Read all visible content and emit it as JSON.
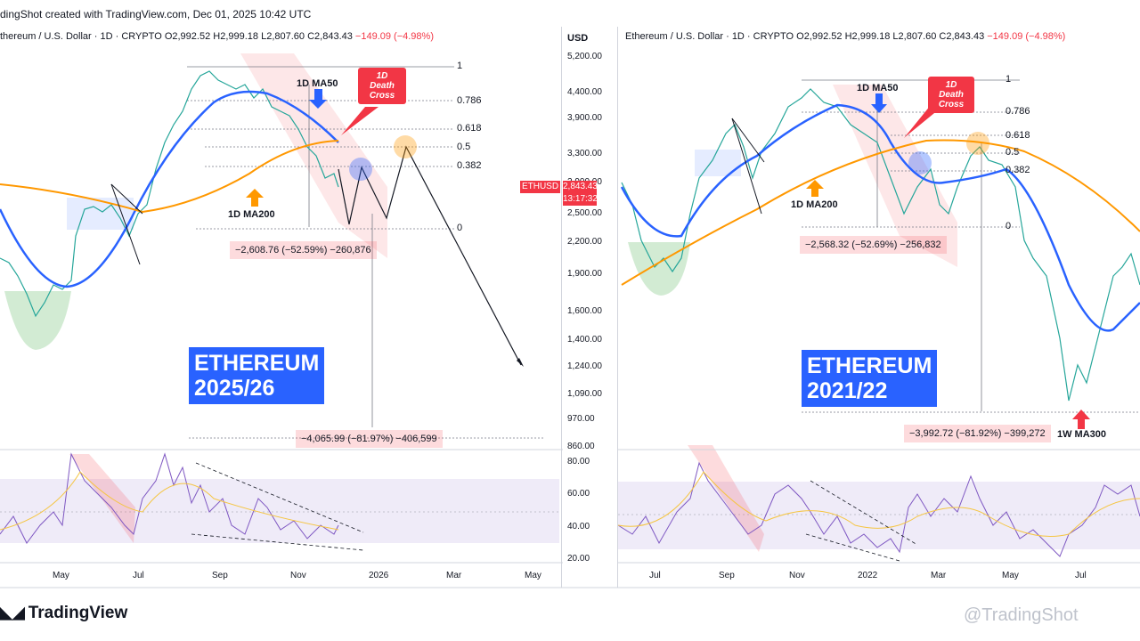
{
  "header": {
    "created_text": "dingShot created with TradingView.com, Dec 01, 2025 10:42 UTC"
  },
  "left": {
    "ohlc_prefix": "thereum / U.S. Dollar · 1D · CRYPTO",
    "o": "O2,992.52",
    "h": "H2,999.18",
    "l": "L2,807.60",
    "c": "C2,843.43",
    "chg": "−149.09 (−4.98%)",
    "title_line1": "ETHEREUM",
    "title_line2": "2025/26",
    "ma50": "1D MA50",
    "ma200": "1D MA200",
    "death_cross": [
      "1D",
      "Death",
      "Cross"
    ],
    "measure1": "−2,608.76 (−52.59%) −260,876",
    "measure2": "−4,065.99 (−81.97%) −406,599",
    "fib": [
      "1",
      "0.786",
      "0.618",
      "0.5",
      "0.382",
      "0"
    ]
  },
  "right": {
    "ohlc_prefix": "Ethereum / U.S. Dollar · 1D · CRYPTO",
    "o": "O2,992.52",
    "h": "H2,999.18",
    "l": "L2,807.60",
    "c": "C2,843.43",
    "chg": "−149.09 (−4.98%)",
    "title_line1": "ETHEREUM",
    "title_line2": "2021/22",
    "ma50": "1D MA50",
    "ma200": "1D MA200",
    "ma300": "1W MA300",
    "death_cross": [
      "1D",
      "Death",
      "Cross"
    ],
    "measure1": "−2,568.32 (−52.69%) −256,832",
    "measure2": "−3,992.72 (−81.92%) −399,272",
    "fib": [
      "1",
      "0.786",
      "0.618",
      "0.5",
      "0.382",
      "0"
    ]
  },
  "price_axis": {
    "currency": "USD",
    "ticks": [
      "5,200.00",
      "4,400.00",
      "3,900.00",
      "3,300.00",
      "2,900.00",
      "2,500.00",
      "2,200.00",
      "1,900.00",
      "1,600.00",
      "1,400.00",
      "1,240.00",
      "1,090.00",
      "970.00",
      "860.00"
    ],
    "rsi_ticks": [
      "80.00",
      "60.00",
      "40.00",
      "20.00"
    ],
    "tag_name": "ETHUSD",
    "tag_price": "2,843.43",
    "tag_time": "13:17:32"
  },
  "left_xaxis": [
    "May",
    "Jul",
    "Sep",
    "Nov",
    "2026",
    "Mar",
    "May"
  ],
  "right_xaxis": [
    "Jul",
    "Sep",
    "Nov",
    "2022",
    "Mar",
    "May",
    "Jul"
  ],
  "footer": {
    "logo": "TradingView",
    "watermark": "@TradingShot"
  },
  "colors": {
    "ma50": "#2962ff",
    "ma200": "#ff9800",
    "rsi": "#7e57c2",
    "rsi_ma": "#f5c542",
    "bull": "#26a69a",
    "bear": "#ef5350",
    "highlight": "#f23645"
  },
  "chart_data": {
    "type": "candlestick",
    "series": [
      {
        "name": "1D MA50"
      },
      {
        "name": "1D MA200"
      }
    ],
    "y_axis_scale": "log",
    "ylim": [
      860,
      5200
    ],
    "rsi_range": [
      20,
      80
    ]
  }
}
